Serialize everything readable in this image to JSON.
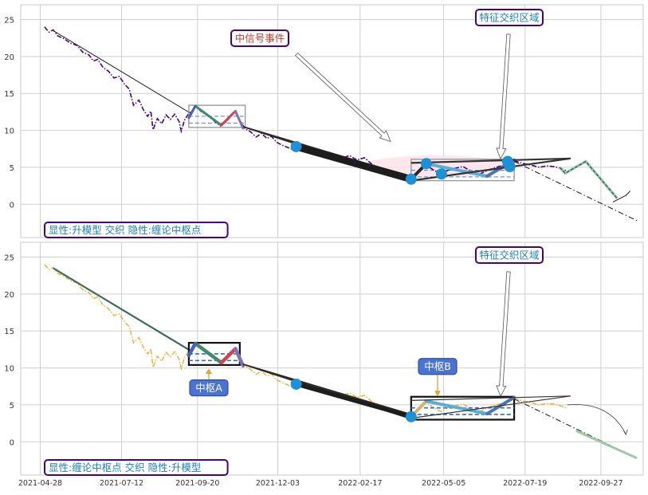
{
  "chart_data": [
    {
      "type": "line",
      "panel": "top",
      "title": "",
      "xlabel": "",
      "ylabel": "",
      "x_tick_labels": [
        "2021-04-28",
        "2021-07-12",
        "2021-09-20",
        "2021-12-03",
        "2022-02-17",
        "2022-05-05",
        "2022-07-19",
        "2022-09-27"
      ],
      "y_ticks": [
        0,
        5,
        10,
        15,
        20,
        25
      ],
      "ylim": [
        -4.5,
        27
      ],
      "xlim": [
        "2021-04-10",
        "2022-11-05"
      ],
      "grid": true,
      "series": [
        {
          "style": "dash-dot",
          "color": "#4b0082",
          "points": [
            [
              "2021-05-02",
              24.0
            ],
            [
              "2021-05-06",
              23.3
            ],
            [
              "2021-05-10",
              23.6
            ],
            [
              "2021-05-14",
              22.8
            ],
            [
              "2021-05-20",
              22.4
            ],
            [
              "2021-05-26",
              21.8
            ],
            [
              "2021-06-01",
              21.5
            ],
            [
              "2021-06-06",
              20.6
            ],
            [
              "2021-06-12",
              20.2
            ],
            [
              "2021-06-16",
              19.4
            ],
            [
              "2021-06-20",
              19.6
            ],
            [
              "2021-06-25",
              18.5
            ],
            [
              "2021-06-30",
              18.0
            ],
            [
              "2021-07-05",
              17.1
            ],
            [
              "2021-07-10",
              17.3
            ],
            [
              "2021-07-15",
              16.2
            ],
            [
              "2021-07-19",
              15.6
            ],
            [
              "2021-07-23",
              13.4
            ],
            [
              "2021-07-28",
              14.1
            ],
            [
              "2021-08-01",
              12.8
            ],
            [
              "2021-08-05",
              11.9
            ],
            [
              "2021-08-08",
              12.6
            ],
            [
              "2021-08-10",
              10.1
            ],
            [
              "2021-08-14",
              11.6
            ],
            [
              "2021-08-18",
              10.9
            ],
            [
              "2021-08-22",
              12.1
            ],
            [
              "2021-08-26",
              11.5
            ],
            [
              "2021-08-30",
              12.2
            ],
            [
              "2021-09-03",
              11.2
            ],
            [
              "2021-09-05",
              9.9
            ],
            [
              "2021-09-08",
              11.4
            ],
            [
              "2021-09-12",
              12.3
            ],
            [
              "2021-09-16",
              12.8
            ],
            [
              "2021-09-19",
              13.2
            ],
            [
              "2021-09-23",
              12.6
            ],
            [
              "2021-09-27",
              12.2
            ],
            [
              "2021-10-01",
              11.8
            ],
            [
              "2021-10-06",
              11.2
            ],
            [
              "2021-10-11",
              10.6
            ],
            [
              "2021-10-16",
              11.1
            ],
            [
              "2021-10-20",
              11.8
            ],
            [
              "2021-10-25",
              12.6
            ],
            [
              "2021-10-29",
              11.4
            ],
            [
              "2021-11-03",
              10.2
            ],
            [
              "2021-11-08",
              9.8
            ],
            [
              "2021-11-13",
              9.1
            ],
            [
              "2021-11-18",
              9.6
            ],
            [
              "2021-11-23",
              8.9
            ],
            [
              "2021-11-27",
              9.2
            ],
            [
              "2021-12-02",
              8.4
            ],
            [
              "2021-12-07",
              8.0
            ],
            [
              "2021-12-12",
              7.7
            ],
            [
              "2021-12-17",
              7.4
            ],
            [
              "2021-12-22",
              7.9
            ],
            [
              "2021-12-27",
              7.4
            ],
            [
              "2022-01-03",
              7.1
            ],
            [
              "2022-01-10",
              7.2
            ],
            [
              "2022-01-17",
              6.7
            ],
            [
              "2022-01-24",
              6.6
            ],
            [
              "2022-01-31",
              6.2
            ],
            [
              "2022-02-07",
              6.6
            ],
            [
              "2022-02-14",
              6.0
            ],
            [
              "2022-02-21",
              6.3
            ],
            [
              "2022-02-28",
              5.4
            ],
            [
              "2022-03-07",
              4.9
            ],
            [
              "2022-03-14",
              4.5
            ],
            [
              "2022-03-21",
              4.1
            ],
            [
              "2022-03-28",
              3.8
            ],
            [
              "2022-04-04",
              3.3
            ],
            [
              "2022-04-11",
              4.4
            ],
            [
              "2022-04-18",
              5.4
            ],
            [
              "2022-04-25",
              4.7
            ],
            [
              "2022-05-02",
              4.1
            ],
            [
              "2022-05-09",
              4.6
            ],
            [
              "2022-05-16",
              4.9
            ],
            [
              "2022-05-23",
              5.1
            ],
            [
              "2022-05-30",
              4.5
            ],
            [
              "2022-06-06",
              4.0
            ],
            [
              "2022-06-13",
              4.5
            ],
            [
              "2022-06-20",
              4.9
            ],
            [
              "2022-06-27",
              5.2
            ],
            [
              "2022-07-04",
              5.5
            ],
            [
              "2022-07-11",
              5.8
            ],
            [
              "2022-07-18",
              5.5
            ],
            [
              "2022-07-25",
              5.3
            ],
            [
              "2022-08-01",
              5.0
            ],
            [
              "2022-08-08",
              5.2
            ],
            [
              "2022-08-15",
              5.1
            ],
            [
              "2022-08-22",
              4.8
            ],
            [
              "2022-08-27",
              4.5
            ]
          ]
        }
      ],
      "markers": [
        [
          "2021-12-20",
          7.8
        ],
        [
          "2022-04-05",
          3.4
        ],
        [
          "2022-04-19",
          5.5
        ],
        [
          "2022-05-03",
          4.1
        ],
        [
          "2022-07-03",
          5.8
        ],
        [
          "2022-07-05",
          5.1
        ]
      ],
      "boxes": [
        {
          "from": "2021-09-12",
          "to": "2021-11-03",
          "low": 10.4,
          "high": 13.4,
          "center": 11.9
        },
        {
          "from": "2022-04-05",
          "to": "2022-07-09",
          "low": 3.2,
          "high": 6.1,
          "center": 4.6
        }
      ],
      "annotations": {
        "event": "中信号事件",
        "region": "特征交织区域",
        "footer": "显性:升模型 交织 隐性:缠论中枢点"
      }
    },
    {
      "type": "line",
      "panel": "bottom",
      "title": "",
      "xlabel": "",
      "ylabel": "",
      "x_tick_labels": [
        "2021-04-28",
        "2021-07-12",
        "2021-09-20",
        "2021-12-03",
        "2022-02-17",
        "2022-05-05",
        "2022-07-19",
        "2022-09-27"
      ],
      "y_ticks": [
        0,
        5,
        10,
        15,
        20,
        25
      ],
      "ylim": [
        -4.5,
        27
      ],
      "xlim": [
        "2021-04-10",
        "2022-11-05"
      ],
      "grid": true,
      "series": [
        {
          "style": "dash-dot",
          "color": "#f0ad2e",
          "points": [
            [
              "2021-05-02",
              24.0
            ],
            [
              "2021-05-06",
              23.3
            ],
            [
              "2021-05-10",
              23.6
            ],
            [
              "2021-05-14",
              22.8
            ],
            [
              "2021-05-20",
              22.4
            ],
            [
              "2021-05-26",
              21.8
            ],
            [
              "2021-06-01",
              21.5
            ],
            [
              "2021-06-06",
              20.6
            ],
            [
              "2021-06-12",
              20.2
            ],
            [
              "2021-06-16",
              19.4
            ],
            [
              "2021-06-20",
              19.6
            ],
            [
              "2021-06-25",
              18.5
            ],
            [
              "2021-06-30",
              18.0
            ],
            [
              "2021-07-05",
              17.1
            ],
            [
              "2021-07-10",
              17.3
            ],
            [
              "2021-07-15",
              16.2
            ],
            [
              "2021-07-19",
              15.6
            ],
            [
              "2021-07-23",
              13.4
            ],
            [
              "2021-07-28",
              14.1
            ],
            [
              "2021-08-01",
              12.8
            ],
            [
              "2021-08-05",
              11.9
            ],
            [
              "2021-08-08",
              12.6
            ],
            [
              "2021-08-10",
              10.1
            ],
            [
              "2021-08-14",
              11.6
            ],
            [
              "2021-08-18",
              10.9
            ],
            [
              "2021-08-22",
              12.1
            ],
            [
              "2021-08-26",
              11.5
            ],
            [
              "2021-08-30",
              12.2
            ],
            [
              "2021-09-03",
              11.2
            ],
            [
              "2021-09-05",
              9.9
            ],
            [
              "2021-09-08",
              11.4
            ],
            [
              "2021-09-12",
              12.3
            ],
            [
              "2021-09-16",
              12.8
            ],
            [
              "2021-09-19",
              13.2
            ],
            [
              "2021-09-23",
              12.6
            ],
            [
              "2021-09-27",
              12.2
            ],
            [
              "2021-10-01",
              11.8
            ],
            [
              "2021-10-06",
              11.2
            ],
            [
              "2021-10-11",
              10.6
            ],
            [
              "2021-10-16",
              11.1
            ],
            [
              "2021-10-20",
              11.8
            ],
            [
              "2021-10-25",
              12.6
            ],
            [
              "2021-10-29",
              11.4
            ],
            [
              "2021-11-03",
              10.2
            ],
            [
              "2021-11-08",
              9.8
            ],
            [
              "2021-11-13",
              9.1
            ],
            [
              "2021-11-18",
              9.6
            ],
            [
              "2021-11-23",
              8.9
            ],
            [
              "2021-11-27",
              9.2
            ],
            [
              "2021-12-02",
              8.4
            ],
            [
              "2021-12-07",
              8.0
            ],
            [
              "2021-12-12",
              7.7
            ],
            [
              "2021-12-17",
              7.4
            ],
            [
              "2021-12-22",
              7.9
            ],
            [
              "2021-12-27",
              7.4
            ],
            [
              "2022-01-03",
              7.1
            ],
            [
              "2022-01-10",
              7.2
            ],
            [
              "2022-01-17",
              6.7
            ],
            [
              "2022-01-24",
              6.6
            ],
            [
              "2022-01-31",
              6.2
            ],
            [
              "2022-02-07",
              6.6
            ],
            [
              "2022-02-14",
              6.0
            ],
            [
              "2022-02-21",
              6.3
            ],
            [
              "2022-02-28",
              5.4
            ],
            [
              "2022-03-07",
              4.9
            ],
            [
              "2022-03-14",
              4.5
            ],
            [
              "2022-03-21",
              4.1
            ],
            [
              "2022-03-28",
              3.8
            ],
            [
              "2022-04-04",
              3.3
            ],
            [
              "2022-04-11",
              4.4
            ],
            [
              "2022-04-18",
              5.4
            ],
            [
              "2022-04-25",
              4.7
            ],
            [
              "2022-05-02",
              4.1
            ],
            [
              "2022-05-09",
              4.6
            ],
            [
              "2022-05-16",
              4.9
            ],
            [
              "2022-05-23",
              5.1
            ],
            [
              "2022-05-30",
              4.5
            ],
            [
              "2022-06-06",
              4.0
            ],
            [
              "2022-06-13",
              4.5
            ],
            [
              "2022-06-20",
              4.9
            ],
            [
              "2022-06-27",
              5.2
            ],
            [
              "2022-07-04",
              5.5
            ],
            [
              "2022-07-11",
              5.8
            ],
            [
              "2022-07-18",
              5.5
            ],
            [
              "2022-07-25",
              5.3
            ],
            [
              "2022-08-01",
              5.0
            ],
            [
              "2022-08-08",
              5.2
            ],
            [
              "2022-08-15",
              5.1
            ],
            [
              "2022-08-22",
              4.8
            ],
            [
              "2022-08-27",
              4.5
            ]
          ]
        }
      ],
      "markers": [
        [
          "2021-12-20",
          7.8
        ],
        [
          "2022-04-05",
          3.4
        ]
      ],
      "boxes": [
        {
          "from": "2021-09-12",
          "to": "2021-10-29",
          "low": 10.4,
          "high": 13.4,
          "center": 11.9,
          "label": "中枢A"
        },
        {
          "from": "2022-04-05",
          "to": "2022-07-09",
          "low": 3.0,
          "high": 6.1,
          "center": 4.6,
          "label": "中枢B"
        }
      ],
      "annotations": {
        "region": "特征交织区域",
        "footer": "显性:缠论中枢点 交织 隐性:升模型"
      }
    }
  ]
}
